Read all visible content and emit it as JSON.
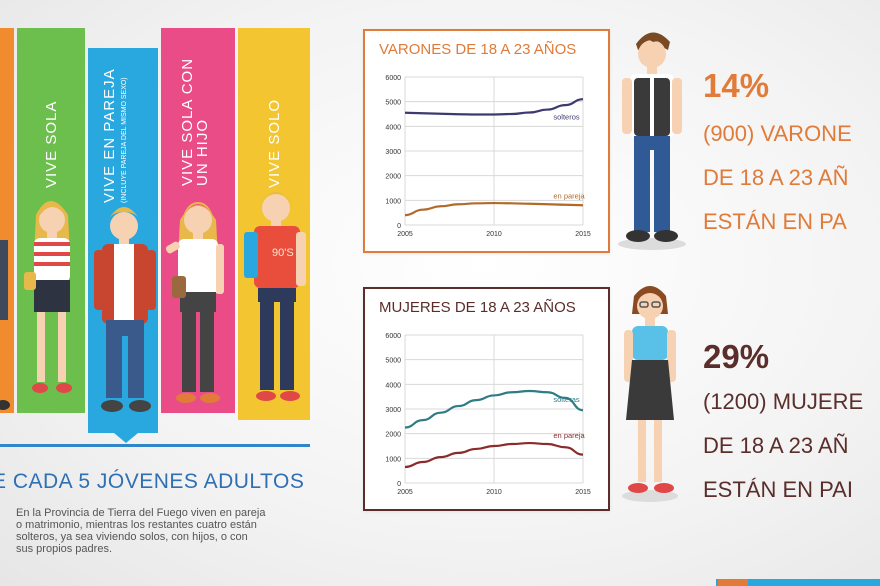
{
  "bars": [
    {
      "label": "VIVE SOLA",
      "note": "",
      "color": "#6cbf4d"
    },
    {
      "label": "VIVE EN PAREJA",
      "note": "(INCLUYE PAREJA DEL MISMO SEXO)",
      "color": "#29a8e0"
    },
    {
      "label": "VIVE SOLA CON UN HIJO",
      "note": "",
      "color": "#ea4c88"
    },
    {
      "label": "VIVE SOLO",
      "note": "",
      "color": "#f2c531"
    }
  ],
  "tshirt_text": "90'S",
  "headline": "E CADA 5 JÓVENES ADULTOS",
  "body_text": "En la Provincia de Tierra del Fuego viven en pareja o matrimonio, mientras los restantes cuatro están solteros, ya sea viviendo solos, con hijos, o con sus propios padres.",
  "men": {
    "percent": "14%",
    "line1": "(900) VARONE",
    "line2": "DE 18 A 23 AÑ",
    "line3": "ESTÁN EN PA"
  },
  "women": {
    "percent": "29%",
    "line1": "(1200) MUJERE",
    "line2": "DE 18 A 23 AÑ",
    "line3": "ESTÁN EN PAI"
  },
  "colors": {
    "men_accent": "#e07b39",
    "women_accent": "#5a2e2a",
    "headline": "#2f6fb3",
    "solteros_men": "#3d3a6e",
    "pareja_men": "#b26a2a",
    "solteras_women": "#2f7b86",
    "pareja_women": "#8a2c2c"
  },
  "chart_data": [
    {
      "type": "line",
      "title": "VARONES DE 18 A 23 AÑOS",
      "x": [
        2005,
        2006,
        2007,
        2008,
        2009,
        2010,
        2011,
        2012,
        2013,
        2014,
        2015
      ],
      "xticks": [
        "2005",
        "2010",
        "2015"
      ],
      "yticks": [
        "0",
        "1000",
        "2000",
        "3000",
        "4000",
        "5000",
        "6000"
      ],
      "ylim": [
        0,
        6000
      ],
      "xlim": [
        2005,
        2015
      ],
      "grid": true,
      "series": [
        {
          "name": "solteros",
          "values": [
            4550,
            4530,
            4510,
            4490,
            4480,
            4480,
            4500,
            4560,
            4680,
            4860,
            5100
          ]
        },
        {
          "name": "en pareja",
          "values": [
            400,
            620,
            760,
            840,
            880,
            890,
            880,
            860,
            840,
            820,
            800
          ]
        }
      ]
    },
    {
      "type": "line",
      "title": "MUJERES DE 18 A 23 AÑOS",
      "x": [
        2005,
        2006,
        2007,
        2008,
        2009,
        2010,
        2011,
        2012,
        2013,
        2014,
        2015
      ],
      "xticks": [
        "2005",
        "2010",
        "2015"
      ],
      "yticks": [
        "0",
        "1000",
        "2000",
        "3000",
        "4000",
        "5000",
        "6000"
      ],
      "ylim": [
        0,
        6000
      ],
      "xlim": [
        2005,
        2015
      ],
      "grid": true,
      "series": [
        {
          "name": "solteras",
          "values": [
            2250,
            2550,
            2850,
            3120,
            3360,
            3550,
            3680,
            3730,
            3680,
            3450,
            2950
          ]
        },
        {
          "name": "en pareja",
          "values": [
            650,
            850,
            1050,
            1220,
            1380,
            1500,
            1580,
            1620,
            1580,
            1450,
            1150
          ]
        }
      ]
    }
  ]
}
